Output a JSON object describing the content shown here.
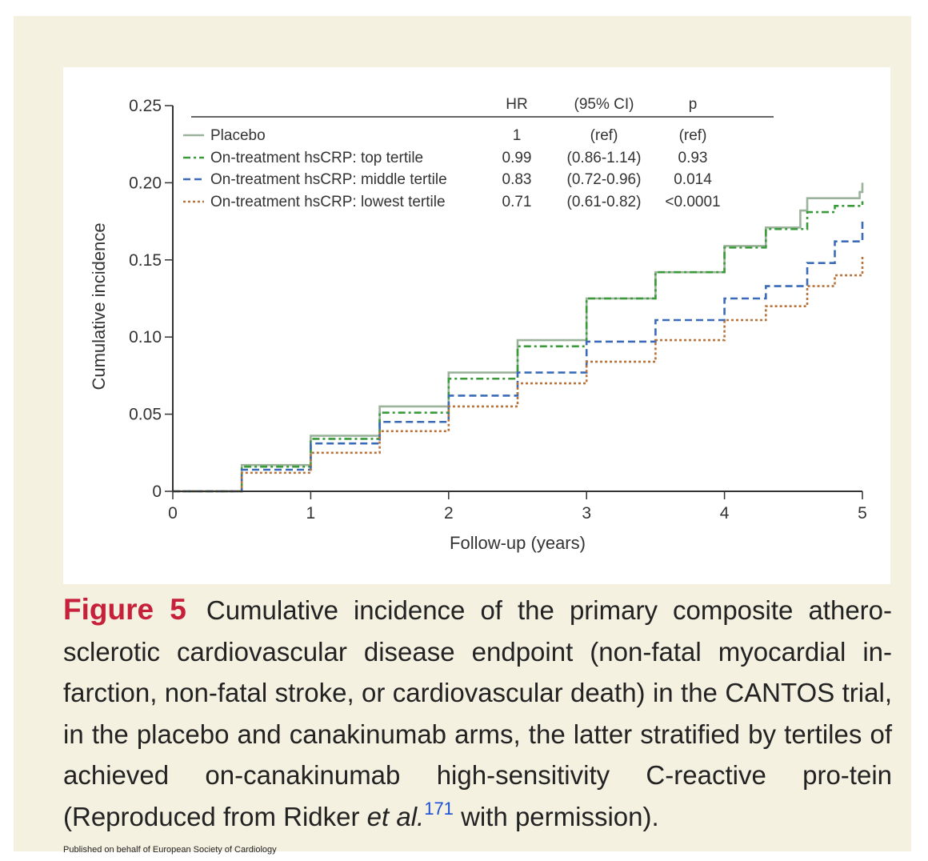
{
  "chart_data": {
    "type": "line",
    "xlabel": "Follow-up (years)",
    "ylabel": "Cumulative incidence",
    "xlim": [
      0,
      5
    ],
    "ylim": [
      0,
      0.25
    ],
    "x_ticks": [
      "0",
      "1",
      "2",
      "3",
      "4",
      "5"
    ],
    "y_ticks": [
      "0",
      "0.05",
      "0.10",
      "0.15",
      "0.20",
      "0.25"
    ],
    "grid": false,
    "legend_position": "top-left",
    "table_headers": {
      "hr": "HR",
      "ci": "(95% CI)",
      "p": "p"
    },
    "series": [
      {
        "name": "Placebo",
        "style": "solid",
        "color": "#9ab39a",
        "hr": "1",
        "ci": "(ref)",
        "p": "(ref)",
        "x": [
          0,
          0.5,
          1.0,
          1.5,
          2.0,
          2.5,
          3.0,
          3.5,
          4.0,
          4.3,
          4.55,
          4.6,
          4.7,
          4.8,
          4.95,
          4.98,
          5.0
        ],
        "y": [
          0,
          0.017,
          0.036,
          0.055,
          0.077,
          0.098,
          0.125,
          0.142,
          0.159,
          0.171,
          0.182,
          0.19,
          0.19,
          0.19,
          0.19,
          0.194,
          0.2
        ]
      },
      {
        "name": "On-treatment hsCRP: top tertile",
        "style": "dashdot",
        "color": "#3a9a3a",
        "hr": "0.99",
        "ci": "(0.86-1.14)",
        "p": "0.93",
        "x": [
          0,
          0.5,
          1.0,
          1.5,
          2.0,
          2.5,
          3.0,
          3.5,
          4.0,
          4.3,
          4.6,
          4.8,
          5.0
        ],
        "y": [
          0,
          0.016,
          0.034,
          0.051,
          0.073,
          0.094,
          0.125,
          0.142,
          0.158,
          0.17,
          0.181,
          0.185,
          0.188
        ]
      },
      {
        "name": "On-treatment hsCRP: middle tertile",
        "style": "dashed",
        "color": "#3a6ab8",
        "hr": "0.83",
        "ci": "(0.72-0.96)",
        "p": "0.014",
        "x": [
          0,
          0.5,
          1.0,
          1.5,
          2.0,
          2.5,
          3.0,
          3.5,
          4.0,
          4.3,
          4.6,
          4.8,
          5.0
        ],
        "y": [
          0,
          0.014,
          0.031,
          0.045,
          0.062,
          0.077,
          0.097,
          0.111,
          0.125,
          0.133,
          0.148,
          0.162,
          0.176
        ]
      },
      {
        "name": "On-treatment hsCRP: lowest tertile",
        "style": "dotted",
        "color": "#b8733a",
        "hr": "0.71",
        "ci": "(0.61-0.82)",
        "p": "<0.0001",
        "x": [
          0,
          0.5,
          1.0,
          1.5,
          2.0,
          2.5,
          3.0,
          3.5,
          4.0,
          4.3,
          4.6,
          4.8,
          5.0
        ],
        "y": [
          0,
          0.012,
          0.025,
          0.039,
          0.055,
          0.07,
          0.084,
          0.098,
          0.111,
          0.12,
          0.133,
          0.14,
          0.153
        ]
      }
    ]
  },
  "caption": {
    "label": "Figure 5",
    "text_before_ref": "Cumulative incidence of the primary composite athero-sclerotic cardiovascular disease endpoint (non-fatal myocardial in-farction, non-fatal stroke, or cardiovascular death) in the CANTOS trial, in the placebo and canakinumab arms, the latter stratified by tertiles of achieved on-canakinumab high-sensitivity C-reactive pro-tein (Reproduced from Ridker ",
    "et_al": "et al.",
    "ref_number": "171",
    "text_after_ref": " with permission)."
  },
  "footer": {
    "publisher": "Published on behalf of European Society of Cardiology"
  }
}
